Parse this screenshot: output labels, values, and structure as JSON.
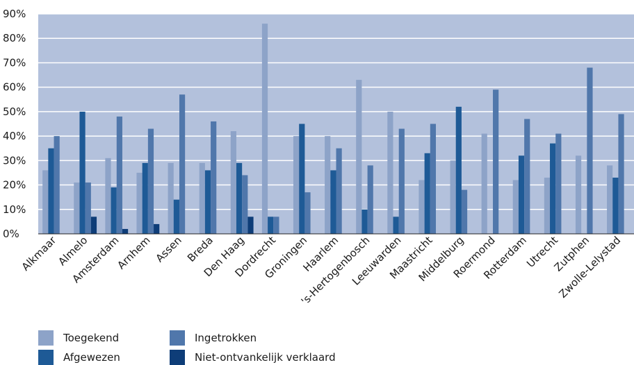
{
  "chart_data": {
    "type": "bar",
    "categories": [
      "Alkmaar",
      "Almelo",
      "Amsterdam",
      "Arnhem",
      "Assen",
      "Breda",
      "Den Haag",
      "Dordrecht",
      "Groningen",
      "Haarlem",
      "'s-Hertogenbosch",
      "Leeuwarden",
      "Maastricht",
      "Middelburg",
      "Roermond",
      "Rotterdam",
      "Utrecht",
      "Zutphen",
      "Zwolle-Lelystad"
    ],
    "series": [
      {
        "name": "Toegekend",
        "color": "#8da3c8",
        "values": [
          26,
          21,
          31,
          25,
          29,
          29,
          42,
          86,
          40,
          40,
          63,
          50,
          22,
          30,
          41,
          22,
          23,
          32,
          28
        ]
      },
      {
        "name": "Afgewezen",
        "color": "#1e5a96",
        "values": [
          35,
          50,
          19,
          29,
          14,
          26,
          29,
          7,
          45,
          26,
          10,
          7,
          33,
          52,
          0,
          32,
          37,
          0,
          23
        ]
      },
      {
        "name": "Ingetrokken",
        "color": "#5077ab",
        "values": [
          40,
          21,
          48,
          43,
          57,
          46,
          24,
          7,
          17,
          35,
          28,
          43,
          45,
          18,
          59,
          47,
          41,
          68,
          49
        ]
      },
      {
        "name": "Niet-ontvankelijk verklaard",
        "color": "#0e3d78",
        "values": [
          0,
          7,
          2,
          4,
          0,
          0,
          7,
          0,
          0,
          0,
          0,
          0,
          0,
          0,
          0,
          0,
          0,
          0,
          0
        ]
      }
    ],
    "y_ticks": [
      "0%",
      "10%",
      "20%",
      "30%",
      "40%",
      "50%",
      "60%",
      "70%",
      "80%",
      "90%"
    ],
    "ylim": [
      0,
      90
    ],
    "grid": true,
    "plot_background": "#b3c1dc",
    "gridline_color": "#ffffff",
    "legend_position": "bottom-left"
  }
}
